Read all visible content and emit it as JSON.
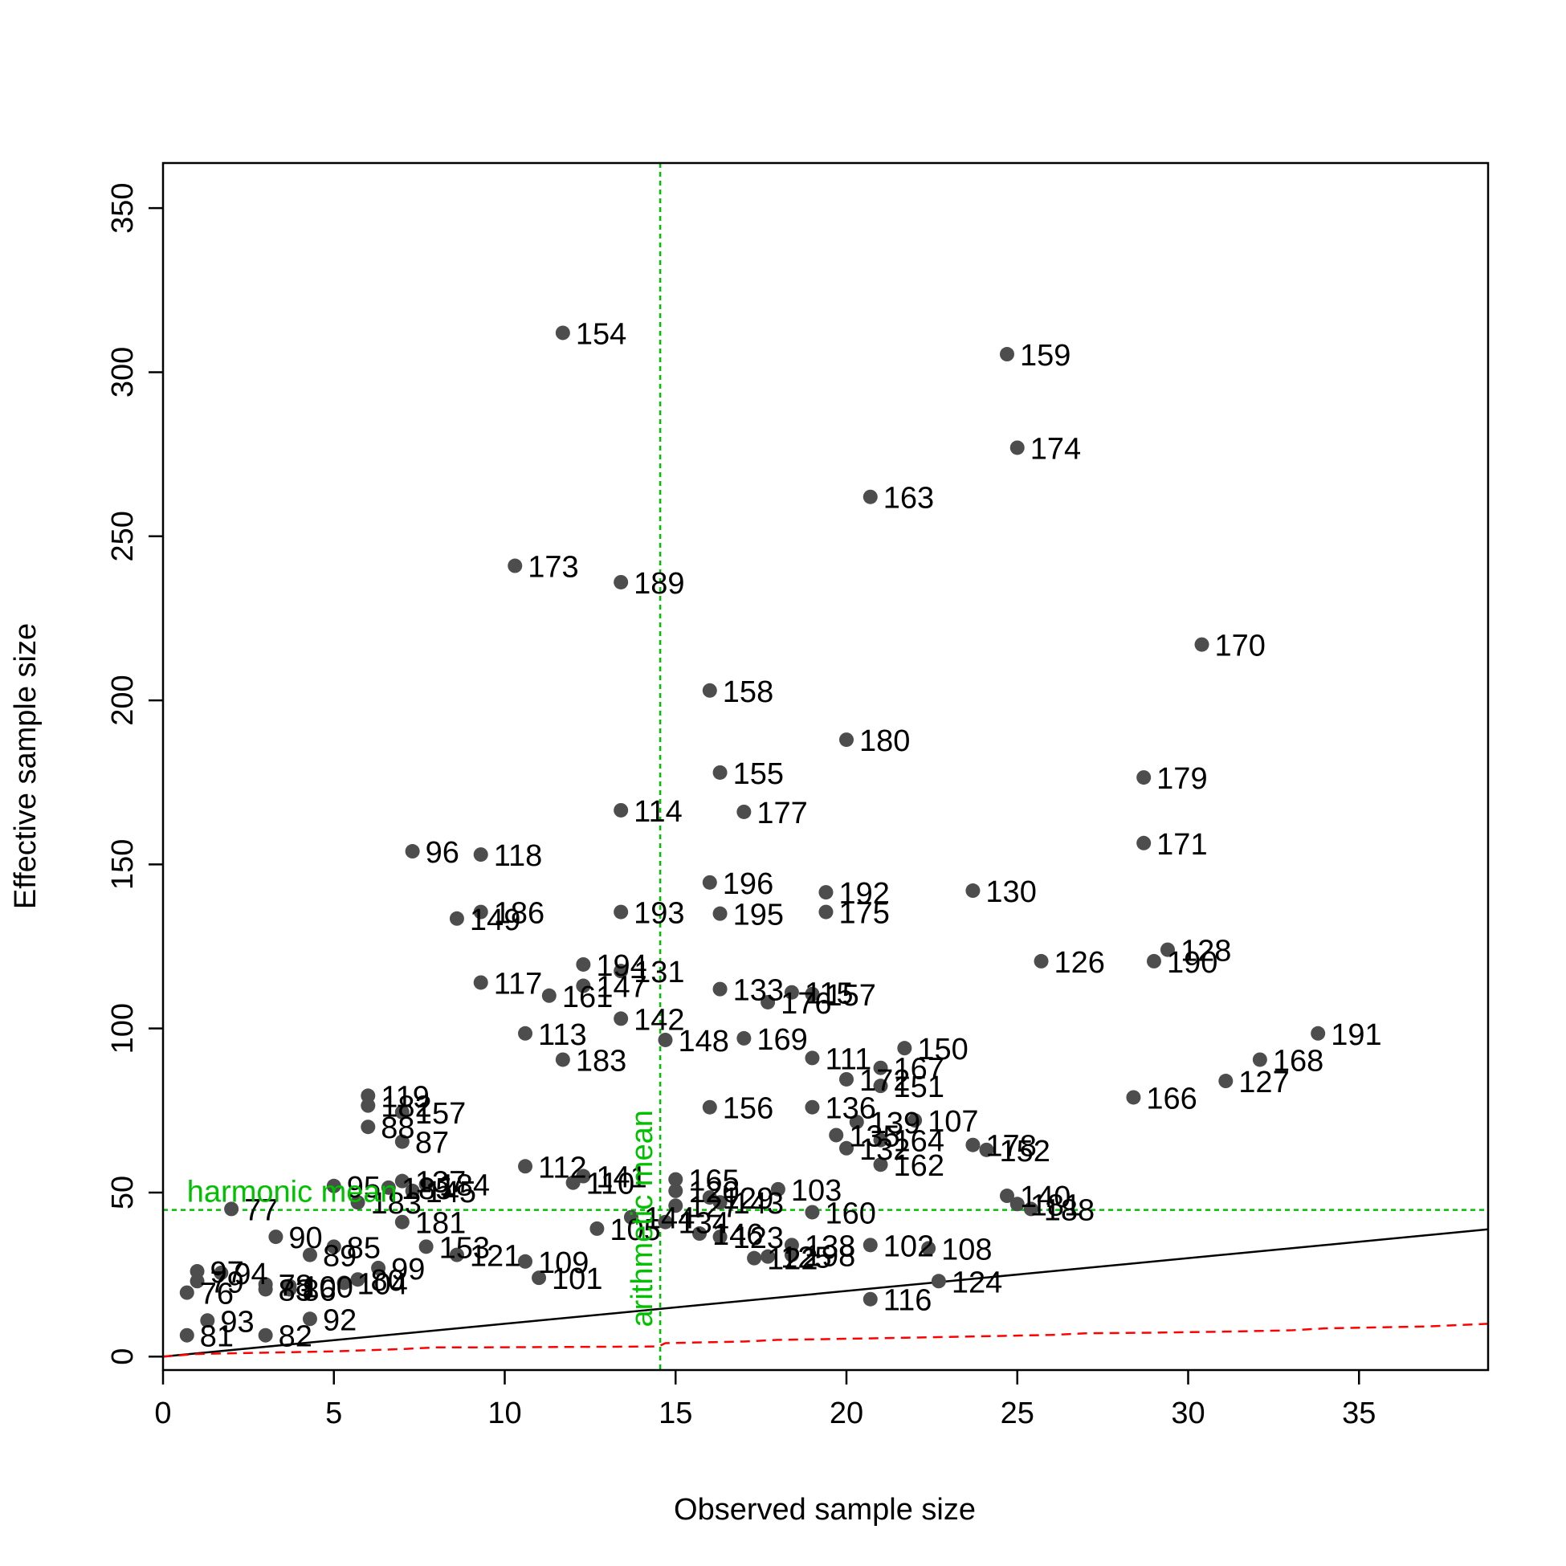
{
  "chart_data": {
    "type": "scatter",
    "title": "",
    "xlabel": "Observed sample size",
    "ylabel": "Effective sample size",
    "xlim": [
      0,
      38.8
    ],
    "ylim": [
      0,
      355
    ],
    "xticks": [
      0,
      5,
      10,
      15,
      20,
      25,
      30,
      35
    ],
    "yticks": [
      0,
      50,
      100,
      150,
      200,
      250,
      300,
      350
    ],
    "grid": false,
    "legend": "none",
    "colors": {
      "points": "#4d4d4d",
      "reference_lines": "#00c000",
      "identity_line": "#000000",
      "lower_curve": "#ff0000"
    },
    "reference_lines": {
      "harmonic_mean": {
        "label": "harmonic mean",
        "y": 44.7
      },
      "arithmetic_mean": {
        "label": "arithmetic mean",
        "x": 14.55
      }
    },
    "identity_line": {
      "from": [
        0,
        0
      ],
      "to": [
        38.8,
        38.8
      ]
    },
    "lower_curve": [
      [
        0,
        0
      ],
      [
        1,
        0.8
      ],
      [
        3,
        1.2
      ],
      [
        5,
        1.6
      ],
      [
        7,
        2.3
      ],
      [
        8,
        2.8
      ],
      [
        9,
        2.8
      ],
      [
        11,
        2.9
      ],
      [
        13,
        3.0
      ],
      [
        14.5,
        3.1
      ],
      [
        14.7,
        4.1
      ],
      [
        17,
        4.6
      ],
      [
        18,
        5.1
      ],
      [
        21,
        5.6
      ],
      [
        24,
        6.2
      ],
      [
        26,
        6.6
      ],
      [
        27,
        7.1
      ],
      [
        29,
        7.3
      ],
      [
        31,
        7.6
      ],
      [
        33,
        8.0
      ],
      [
        34,
        8.6
      ],
      [
        37,
        9.2
      ],
      [
        38.8,
        10.0
      ]
    ],
    "points": [
      {
        "label": "154",
        "x": 11.7,
        "y": 312
      },
      {
        "label": "159",
        "x": 24.7,
        "y": 305.5
      },
      {
        "label": "174",
        "x": 25.0,
        "y": 277
      },
      {
        "label": "163",
        "x": 20.7,
        "y": 262
      },
      {
        "label": "173",
        "x": 10.3,
        "y": 241
      },
      {
        "label": "189",
        "x": 13.4,
        "y": 236
      },
      {
        "label": "170",
        "x": 30.4,
        "y": 217
      },
      {
        "label": "158",
        "x": 16.0,
        "y": 203
      },
      {
        "label": "180",
        "x": 20.0,
        "y": 188
      },
      {
        "label": "155",
        "x": 16.3,
        "y": 178
      },
      {
        "label": "179",
        "x": 28.7,
        "y": 176.5
      },
      {
        "label": "114",
        "x": 13.4,
        "y": 166.5
      },
      {
        "label": "177",
        "x": 17.0,
        "y": 166
      },
      {
        "label": "171",
        "x": 28.7,
        "y": 156.5
      },
      {
        "label": "96",
        "x": 7.3,
        "y": 154
      },
      {
        "label": "118",
        "x": 9.3,
        "y": 153
      },
      {
        "label": "196",
        "x": 16.0,
        "y": 144.5
      },
      {
        "label": "192",
        "x": 19.4,
        "y": 141.5
      },
      {
        "label": "130",
        "x": 23.7,
        "y": 142
      },
      {
        "label": "186",
        "x": 9.3,
        "y": 135.5
      },
      {
        "label": "149",
        "x": 8.6,
        "y": 133.5
      },
      {
        "label": "193",
        "x": 13.4,
        "y": 135.5
      },
      {
        "label": "195",
        "x": 16.3,
        "y": 135
      },
      {
        "label": "175",
        "x": 19.4,
        "y": 135.5
      },
      {
        "label": "128",
        "x": 29.4,
        "y": 124
      },
      {
        "label": "190",
        "x": 29.0,
        "y": 120.5
      },
      {
        "label": "126",
        "x": 25.7,
        "y": 120.5
      },
      {
        "label": "194",
        "x": 12.3,
        "y": 119.5
      },
      {
        "label": "131",
        "x": 13.4,
        "y": 117.5
      },
      {
        "label": "147",
        "x": 12.3,
        "y": 113
      },
      {
        "label": "117",
        "x": 9.3,
        "y": 114
      },
      {
        "label": "161",
        "x": 11.3,
        "y": 110
      },
      {
        "label": "133",
        "x": 16.3,
        "y": 112
      },
      {
        "label": "115",
        "x": 18.4,
        "y": 111
      },
      {
        "label": "176",
        "x": 17.7,
        "y": 108
      },
      {
        "label": "157",
        "x": 19.0,
        "y": 110.5
      },
      {
        "label": "142",
        "x": 13.4,
        "y": 103
      },
      {
        "label": "113",
        "x": 10.6,
        "y": 98.5
      },
      {
        "label": "148",
        "x": 14.7,
        "y": 96.5
      },
      {
        "label": "169",
        "x": 17.0,
        "y": 97
      },
      {
        "label": "183",
        "x": 11.7,
        "y": 90.5
      },
      {
        "label": "111",
        "x": 19.0,
        "y": 91
      },
      {
        "label": "150",
        "x": 21.7,
        "y": 94
      },
      {
        "label": "191",
        "x": 33.8,
        "y": 98.5
      },
      {
        "label": "168",
        "x": 32.1,
        "y": 90.5
      },
      {
        "label": "167",
        "x": 21.0,
        "y": 88
      },
      {
        "label": "172",
        "x": 20.0,
        "y": 84.5
      },
      {
        "label": "151",
        "x": 21.0,
        "y": 82.5
      },
      {
        "label": "127",
        "x": 31.1,
        "y": 84
      },
      {
        "label": "166",
        "x": 28.4,
        "y": 79
      },
      {
        "label": "119",
        "x": 6.0,
        "y": 79.5
      },
      {
        "label": "182",
        "x": 6.0,
        "y": 76.5
      },
      {
        "label": "157",
        "x": 7.0,
        "y": 74.5
      },
      {
        "label": "156",
        "x": 16.0,
        "y": 76
      },
      {
        "label": "136",
        "x": 19.0,
        "y": 76
      },
      {
        "label": "139",
        "x": 20.3,
        "y": 71.5
      },
      {
        "label": "107",
        "x": 22.0,
        "y": 72
      },
      {
        "label": "88",
        "x": 6.0,
        "y": 70
      },
      {
        "label": "135",
        "x": 19.7,
        "y": 67.5
      },
      {
        "label": "164",
        "x": 21.0,
        "y": 66
      },
      {
        "label": "87",
        "x": 7.0,
        "y": 65.5
      },
      {
        "label": "132",
        "x": 20.0,
        "y": 63.5
      },
      {
        "label": "178",
        "x": 23.7,
        "y": 64.5
      },
      {
        "label": "152",
        "x": 24.1,
        "y": 63
      },
      {
        "label": "162",
        "x": 21.0,
        "y": 58.5
      },
      {
        "label": "112",
        "x": 10.6,
        "y": 58
      },
      {
        "label": "141",
        "x": 12.3,
        "y": 55
      },
      {
        "label": "110",
        "x": 12.0,
        "y": 53
      },
      {
        "label": "165",
        "x": 15.0,
        "y": 54
      },
      {
        "label": "137",
        "x": 7.0,
        "y": 53.5
      },
      {
        "label": "184",
        "x": 7.7,
        "y": 52.5
      },
      {
        "label": "95",
        "x": 5.0,
        "y": 52
      },
      {
        "label": "185",
        "x": 6.6,
        "y": 51.5
      },
      {
        "label": "145",
        "x": 7.3,
        "y": 50.5
      },
      {
        "label": "120",
        "x": 15.0,
        "y": 50.5
      },
      {
        "label": "103",
        "x": 18.0,
        "y": 51
      },
      {
        "label": "129",
        "x": 16.0,
        "y": 48.5
      },
      {
        "label": "140",
        "x": 24.7,
        "y": 49
      },
      {
        "label": "143",
        "x": 16.3,
        "y": 47
      },
      {
        "label": "127",
        "x": 15.0,
        "y": 46
      },
      {
        "label": "181",
        "x": 25.0,
        "y": 46.5
      },
      {
        "label": "188",
        "x": 25.4,
        "y": 45
      },
      {
        "label": "183",
        "x": 5.7,
        "y": 47
      },
      {
        "label": "77",
        "x": 2.0,
        "y": 45
      },
      {
        "label": "160",
        "x": 19.0,
        "y": 44
      },
      {
        "label": "144",
        "x": 13.7,
        "y": 42.5
      },
      {
        "label": "134",
        "x": 14.7,
        "y": 41
      },
      {
        "label": "181",
        "x": 7.0,
        "y": 41
      },
      {
        "label": "105",
        "x": 12.7,
        "y": 39
      },
      {
        "label": "146",
        "x": 15.7,
        "y": 37.5
      },
      {
        "label": "123",
        "x": 16.3,
        "y": 36.5
      },
      {
        "label": "90",
        "x": 3.3,
        "y": 36.5
      },
      {
        "label": "138",
        "x": 18.4,
        "y": 34
      },
      {
        "label": "102",
        "x": 20.7,
        "y": 34
      },
      {
        "label": "108",
        "x": 22.4,
        "y": 33
      },
      {
        "label": "85",
        "x": 5.0,
        "y": 33.5
      },
      {
        "label": "153",
        "x": 7.7,
        "y": 33.5
      },
      {
        "label": "89",
        "x": 4.3,
        "y": 31
      },
      {
        "label": "121",
        "x": 8.6,
        "y": 31
      },
      {
        "label": "198",
        "x": 18.4,
        "y": 31
      },
      {
        "label": "125",
        "x": 17.7,
        "y": 30.5
      },
      {
        "label": "122",
        "x": 17.3,
        "y": 30
      },
      {
        "label": "109",
        "x": 10.6,
        "y": 29
      },
      {
        "label": "99",
        "x": 6.3,
        "y": 27
      },
      {
        "label": "97",
        "x": 1.0,
        "y": 26
      },
      {
        "label": "94",
        "x": 1.7,
        "y": 25.5
      },
      {
        "label": "79",
        "x": 1.0,
        "y": 23
      },
      {
        "label": "101",
        "x": 11.0,
        "y": 24
      },
      {
        "label": "124",
        "x": 22.7,
        "y": 23
      },
      {
        "label": "80",
        "x": 5.7,
        "y": 23.5
      },
      {
        "label": "104",
        "x": 5.3,
        "y": 22.5
      },
      {
        "label": "78",
        "x": 3.0,
        "y": 22
      },
      {
        "label": "100",
        "x": 3.7,
        "y": 21.5
      },
      {
        "label": "83",
        "x": 3.0,
        "y": 20.5
      },
      {
        "label": "86",
        "x": 3.7,
        "y": 20.5
      },
      {
        "label": "76",
        "x": 0.7,
        "y": 19.5
      },
      {
        "label": "116",
        "x": 20.7,
        "y": 17.5
      },
      {
        "label": "92",
        "x": 4.3,
        "y": 11.5
      },
      {
        "label": "93",
        "x": 1.3,
        "y": 11
      },
      {
        "label": "81",
        "x": 0.7,
        "y": 6.5
      },
      {
        "label": "82",
        "x": 3.0,
        "y": 6.5
      }
    ]
  }
}
